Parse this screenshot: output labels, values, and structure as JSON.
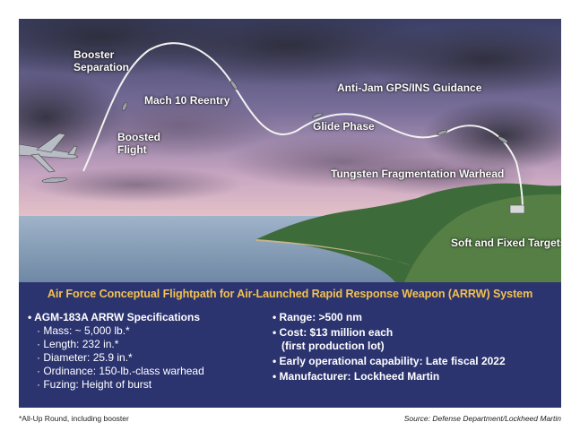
{
  "labels": {
    "booster_separation_1": "Booster",
    "booster_separation_2": "Separation",
    "mach10": "Mach 10 Reentry",
    "antijam": "Anti-Jam GPS/INS Guidance",
    "boosted_1": "Boosted",
    "boosted_2": "Flight",
    "glide": "Glide Phase",
    "warhead": "Tungsten Fragmentation Warhead",
    "targets": "Soft and Fixed Targets"
  },
  "panel": {
    "title": "Air Force Conceptual Flightpath for Air-Launched Rapid Response Weapon (ARRW) System",
    "left": {
      "heading": "AGM-183A ARRW Specifications",
      "items": [
        "Mass: ~ 5,000 lb.*",
        "Length: 232 in.*",
        "Diameter: 25.9 in.*",
        "Ordinance: 150-lb.-class warhead",
        "Fuzing: Height of burst"
      ]
    },
    "right": {
      "range": "Range: >500 nm",
      "cost_1": "Cost: $13 million each",
      "cost_2": "(first production lot)",
      "ioc": "Early operational capability: Late fiscal 2022",
      "manufacturer": "Manufacturer: Lockheed Martin"
    }
  },
  "footnote": "*All-Up Round, including booster",
  "source": "Source: Defense Department/Lockheed Martin",
  "colors": {
    "panel_bg": "#2c3470",
    "title": "#f2c14e"
  }
}
